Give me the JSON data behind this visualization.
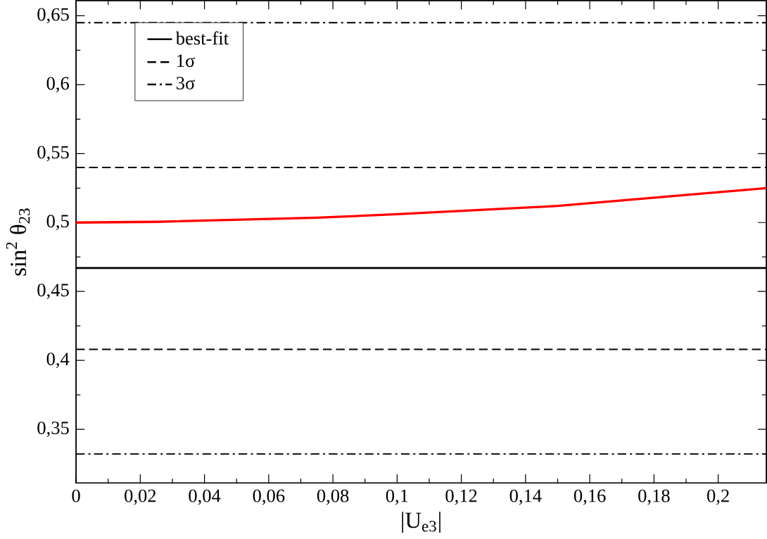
{
  "chart_data": {
    "type": "line",
    "xlabel": "|U$_{e3}$|",
    "ylabel": "sin$^{2}$ θ$_{23}$",
    "xlim": [
      0,
      0.215
    ],
    "ylim": [
      0.311,
      0.661
    ],
    "xticks": [
      {
        "value": 0,
        "label": "0"
      },
      {
        "value": 0.02,
        "label": "0,02"
      },
      {
        "value": 0.04,
        "label": "0,04"
      },
      {
        "value": 0.06,
        "label": "0,06"
      },
      {
        "value": 0.08,
        "label": "0,08"
      },
      {
        "value": 0.1,
        "label": "0,1"
      },
      {
        "value": 0.12,
        "label": "0,12"
      },
      {
        "value": 0.14,
        "label": "0,14"
      },
      {
        "value": 0.16,
        "label": "0,16"
      },
      {
        "value": 0.18,
        "label": "0,18"
      },
      {
        "value": 0.2,
        "label": "0,2"
      }
    ],
    "yticks": [
      {
        "value": 0.35,
        "label": "0,35"
      },
      {
        "value": 0.4,
        "label": "0,4"
      },
      {
        "value": 0.45,
        "label": "0,45"
      },
      {
        "value": 0.5,
        "label": "0,5"
      },
      {
        "value": 0.55,
        "label": "0,55"
      },
      {
        "value": 0.6,
        "label": "0,6"
      },
      {
        "value": 0.65,
        "label": "0,65"
      }
    ],
    "series": [
      {
        "color": "#ff0000",
        "x": [
          0,
          0.025,
          0.05,
          0.075,
          0.1,
          0.125,
          0.15,
          0.175,
          0.2,
          0.215
        ],
        "values": [
          0.5,
          0.5005,
          0.502,
          0.5035,
          0.506,
          0.509,
          0.512,
          0.517,
          0.522,
          0.525
        ]
      }
    ],
    "ref_lines": [
      {
        "axis": "y",
        "value": 0.467,
        "label": "best-fit",
        "color": "#000000",
        "line_style": "solid"
      },
      {
        "axis": "y",
        "value": 0.54,
        "label": "1σ",
        "color": "#000000",
        "line_style": "dashed"
      },
      {
        "axis": "y",
        "value": 0.408,
        "color": "#000000",
        "line_style": "dashed"
      },
      {
        "axis": "y",
        "value": 0.645,
        "label": "3σ",
        "color": "#000000",
        "line_style": "dashdot"
      },
      {
        "axis": "y",
        "value": 0.332,
        "color": "#000000",
        "line_style": "dashdot"
      }
    ],
    "legend": "top left"
  }
}
